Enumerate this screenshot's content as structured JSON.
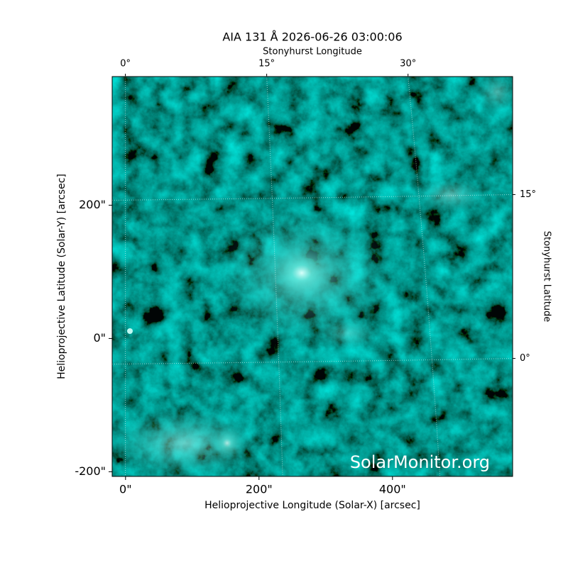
{
  "chart_data": {
    "type": "image",
    "title": "AIA 131 Å 2026-06-26 03:00:06",
    "x_label": "Helioprojective Longitude (Solar-X) [arcsec]",
    "y_label": "Helioprojective Latitude (Solar-Y) [arcsec]",
    "x2_label": "Stonyhurst Longitude",
    "y2_label": "Stonyhurst Latitude",
    "watermark": "SolarMonitor.org",
    "xlim": [
      -20,
      580
    ],
    "xticks": [
      {
        "value": 0,
        "label": "0\""
      },
      {
        "value": 200,
        "label": "200\""
      },
      {
        "value": 400,
        "label": "400\""
      }
    ],
    "ylim": [
      -207,
      393
    ],
    "yticks": [
      {
        "value": -200,
        "label": "-200\""
      },
      {
        "value": 0,
        "label": "0\""
      },
      {
        "value": 200,
        "label": "200\""
      }
    ],
    "x2lim": [
      -1.4,
      41.1
    ],
    "x2ticks": [
      {
        "value": 0,
        "label": "0°"
      },
      {
        "value": 15,
        "label": "15°"
      },
      {
        "value": 30,
        "label": "30°"
      }
    ],
    "y2lim": [
      -10.8,
      25.8
    ],
    "y2ticks": [
      {
        "value": 0,
        "label": "0°"
      },
      {
        "value": 15,
        "label": "15°"
      }
    ],
    "grid": true
  }
}
